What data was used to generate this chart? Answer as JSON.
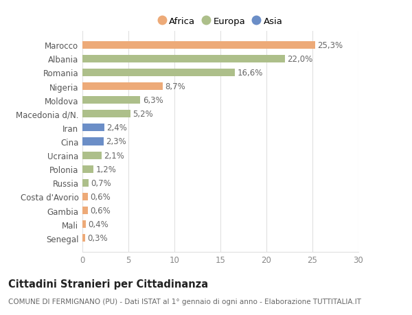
{
  "categories": [
    "Marocco",
    "Albania",
    "Romania",
    "Nigeria",
    "Moldova",
    "Macedonia d/N.",
    "Iran",
    "Cina",
    "Ucraina",
    "Polonia",
    "Russia",
    "Costa d'Avorio",
    "Gambia",
    "Mali",
    "Senegal"
  ],
  "values": [
    25.3,
    22.0,
    16.6,
    8.7,
    6.3,
    5.2,
    2.4,
    2.3,
    2.1,
    1.2,
    0.7,
    0.6,
    0.6,
    0.4,
    0.3
  ],
  "labels": [
    "25,3%",
    "22,0%",
    "16,6%",
    "8,7%",
    "6,3%",
    "5,2%",
    "2,4%",
    "2,3%",
    "2,1%",
    "1,2%",
    "0,7%",
    "0,6%",
    "0,6%",
    "0,4%",
    "0,3%"
  ],
  "continents": [
    "Africa",
    "Europa",
    "Europa",
    "Africa",
    "Europa",
    "Europa",
    "Asia",
    "Asia",
    "Europa",
    "Europa",
    "Europa",
    "Africa",
    "Africa",
    "Africa",
    "Africa"
  ],
  "colors": {
    "Africa": "#EDAA78",
    "Europa": "#ADBF8A",
    "Asia": "#6B8EC7"
  },
  "xlim": [
    0,
    30
  ],
  "xticks": [
    0,
    5,
    10,
    15,
    20,
    25,
    30
  ],
  "title": "Cittadini Stranieri per Cittadinanza",
  "subtitle": "COMUNE DI FERMIGNANO (PU) - Dati ISTAT al 1° gennaio di ogni anno - Elaborazione TUTTITALIA.IT",
  "background_color": "#ffffff",
  "grid_color": "#e0e0e0",
  "bar_height": 0.55,
  "label_fontsize": 8.5,
  "tick_fontsize": 8.5,
  "title_fontsize": 10.5,
  "subtitle_fontsize": 7.5,
  "legend_entries": [
    "Africa",
    "Europa",
    "Asia"
  ],
  "legend_marker_colors": [
    "#EDAA78",
    "#ADBF8A",
    "#6B8EC7"
  ]
}
